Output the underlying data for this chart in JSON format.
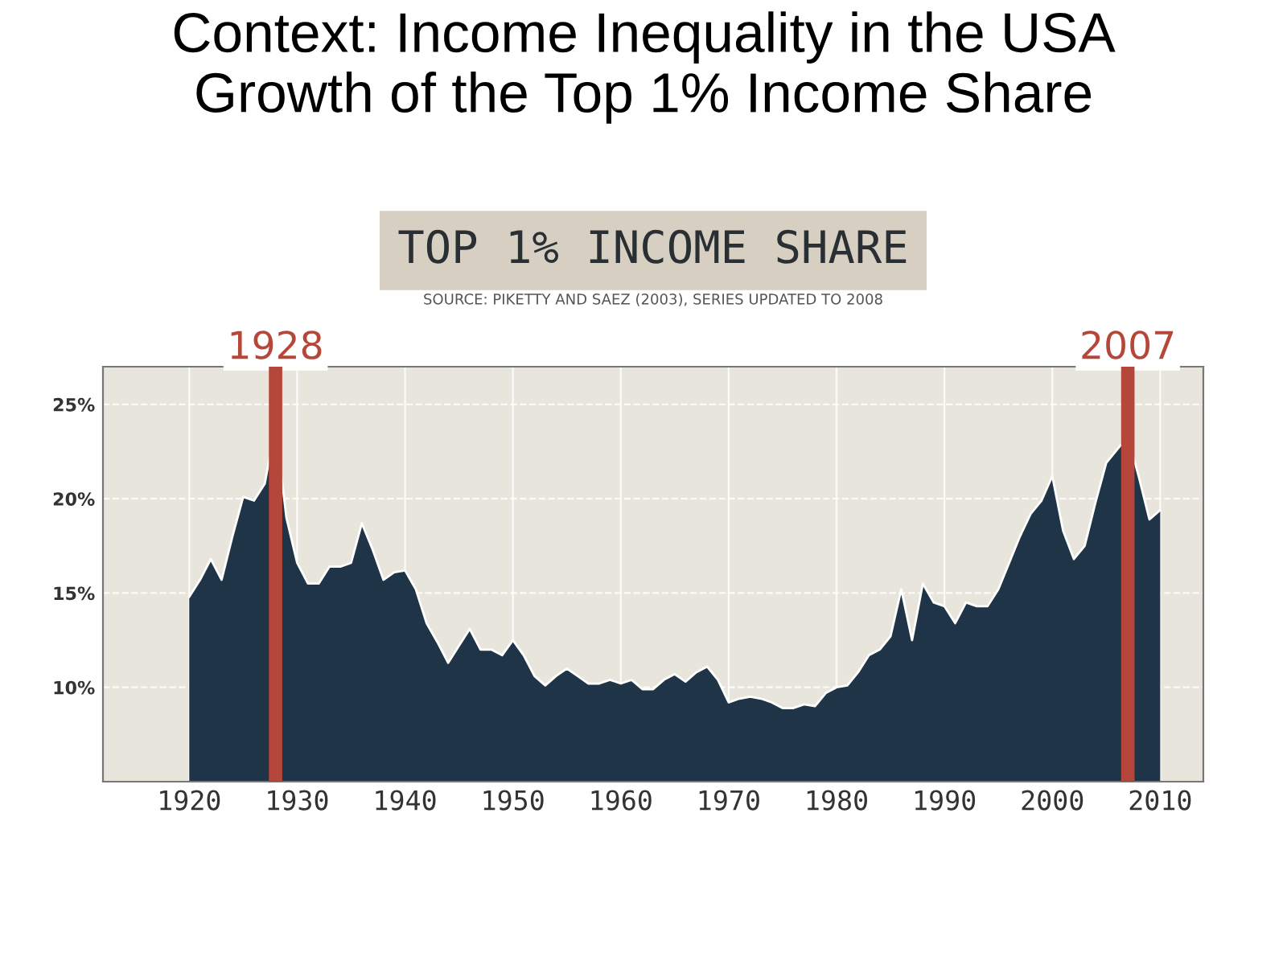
{
  "chart_data": {
    "type": "area",
    "title": "Context: Income Inequality in the USA\nGrowth of the Top 1% Income Share",
    "subtitle": "TOP 1% INCOME SHARE",
    "annotations": [
      "SOURCE: PIKETTY AND SAEZ (2003), SERIES UPDATED TO 2008"
    ],
    "ref_lines": [
      {
        "axis": "x",
        "value": 1928,
        "label": "1928",
        "color": "#b5473a"
      },
      {
        "axis": "x",
        "value": 2007,
        "label": "2007",
        "color": "#b5473a"
      }
    ],
    "x": [
      1920,
      1921,
      1922,
      1923,
      1924,
      1925,
      1926,
      1927,
      1928,
      1929,
      1930,
      1931,
      1932,
      1933,
      1934,
      1935,
      1936,
      1937,
      1938,
      1939,
      1940,
      1941,
      1942,
      1943,
      1944,
      1945,
      1946,
      1947,
      1948,
      1949,
      1950,
      1951,
      1952,
      1953,
      1954,
      1955,
      1956,
      1957,
      1958,
      1959,
      1960,
      1961,
      1962,
      1963,
      1964,
      1965,
      1966,
      1967,
      1968,
      1969,
      1970,
      1971,
      1972,
      1973,
      1974,
      1975,
      1976,
      1977,
      1978,
      1979,
      1980,
      1981,
      1982,
      1983,
      1984,
      1985,
      1986,
      1987,
      1988,
      1989,
      1990,
      1991,
      1992,
      1993,
      1994,
      1995,
      1996,
      1997,
      1998,
      1999,
      2000,
      2001,
      2002,
      2003,
      2004,
      2005,
      2006,
      2007,
      2008,
      2009,
      2010
    ],
    "series": [
      {
        "color": "#1f3447",
        "values": [
          14.8,
          15.7,
          16.8,
          15.7,
          18.0,
          20.1,
          19.9,
          20.8,
          23.9,
          19.0,
          16.6,
          15.5,
          15.5,
          16.4,
          16.4,
          16.6,
          18.7,
          17.3,
          15.7,
          16.1,
          16.2,
          15.2,
          13.4,
          12.4,
          11.3,
          12.2,
          13.1,
          12.0,
          12.0,
          11.7,
          12.5,
          11.7,
          10.6,
          10.1,
          10.6,
          11.0,
          10.6,
          10.2,
          10.2,
          10.4,
          10.2,
          10.4,
          9.9,
          9.9,
          10.4,
          10.7,
          10.3,
          10.8,
          11.1,
          10.4,
          9.2,
          9.4,
          9.5,
          9.4,
          9.2,
          8.9,
          8.9,
          9.1,
          9.0,
          9.7,
          10.0,
          10.1,
          10.8,
          11.7,
          12.0,
          12.7,
          15.2,
          12.5,
          15.5,
          14.5,
          14.3,
          13.4,
          14.5,
          14.3,
          14.3,
          15.2,
          16.6,
          18.0,
          19.2,
          19.9,
          21.2,
          18.3,
          16.8,
          17.5,
          19.8,
          21.9,
          22.6,
          23.3,
          21.2,
          18.9,
          19.4
        ]
      }
    ],
    "xlim": [
      1912,
      2014
    ],
    "xticks": [
      1920,
      1930,
      1940,
      1950,
      1960,
      1970,
      1980,
      1990,
      2000,
      2010
    ],
    "ylim": [
      5,
      27
    ],
    "yticks": [
      {
        "value": 10,
        "label": "10%"
      },
      {
        "value": 15,
        "label": "15%"
      },
      {
        "value": 20,
        "label": "20%"
      },
      {
        "value": 25,
        "label": "25%"
      }
    ],
    "grid": true
  }
}
